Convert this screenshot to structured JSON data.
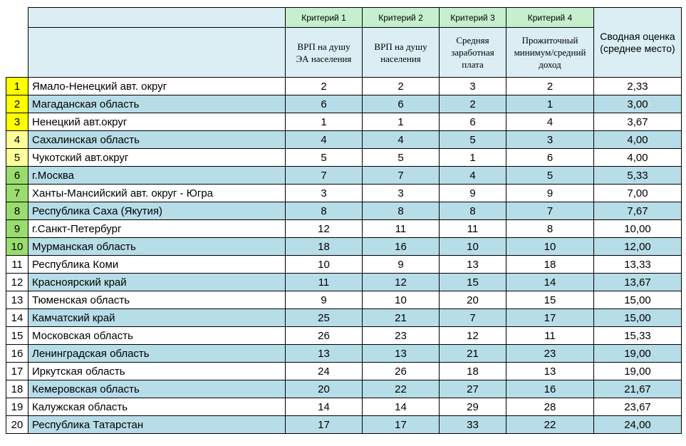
{
  "table": {
    "criteria": [
      "Критерий 1",
      "Критерий 2",
      "Критерий 3",
      "Критерий 4"
    ],
    "subheaders": [
      [
        "ВРП на душу",
        "ЭА населения"
      ],
      [
        "ВРП на душу",
        "населения"
      ],
      [
        "Средняя",
        "заработная",
        "плата"
      ],
      [
        "Прожиточный",
        "минимум/средний",
        "доход"
      ]
    ],
    "summary_header": [
      "Сводная оценка",
      "(среднее место)"
    ],
    "rows": [
      [
        1,
        "Ямало-Ненецкий авт. округ",
        2,
        2,
        3,
        2,
        "2,33"
      ],
      [
        2,
        "Магаданская область",
        6,
        6,
        2,
        1,
        "3,00"
      ],
      [
        3,
        "Ненецкий авт.округ",
        1,
        1,
        6,
        4,
        "3,67"
      ],
      [
        4,
        "Сахалинская область",
        4,
        4,
        5,
        3,
        "4,00"
      ],
      [
        5,
        "Чукотский авт.округ",
        5,
        5,
        1,
        6,
        "4,00"
      ],
      [
        6,
        "г.Москва",
        7,
        7,
        4,
        5,
        "5,33"
      ],
      [
        7,
        "Ханты-Мансийский авт. округ - Югра",
        3,
        3,
        9,
        9,
        "7,00"
      ],
      [
        8,
        "Республика Саха (Якутия)",
        8,
        8,
        8,
        7,
        "7,67"
      ],
      [
        9,
        "г.Санкт-Петербург",
        12,
        11,
        11,
        8,
        "10,00"
      ],
      [
        10,
        "Мурманская область",
        18,
        16,
        10,
        10,
        "12,00"
      ],
      [
        11,
        "Республика Коми",
        10,
        9,
        13,
        18,
        "13,33"
      ],
      [
        12,
        "Красноярский край",
        11,
        12,
        15,
        14,
        "13,67"
      ],
      [
        13,
        "Тюменская область",
        9,
        10,
        20,
        15,
        "15,00"
      ],
      [
        14,
        "Камчатский край",
        25,
        21,
        7,
        17,
        "15,00"
      ],
      [
        15,
        "Московская область",
        26,
        23,
        12,
        11,
        "15,33"
      ],
      [
        16,
        "Ленинградская область",
        13,
        13,
        21,
        23,
        "19,00"
      ],
      [
        17,
        "Иркутская область",
        24,
        26,
        18,
        13,
        "19,00"
      ],
      [
        18,
        "Кемеровская область",
        20,
        22,
        27,
        16,
        "21,67"
      ],
      [
        19,
        "Калужская область",
        14,
        14,
        29,
        28,
        "23,67"
      ],
      [
        20,
        "Республика Татарстан",
        17,
        17,
        33,
        22,
        "24,00"
      ]
    ]
  }
}
